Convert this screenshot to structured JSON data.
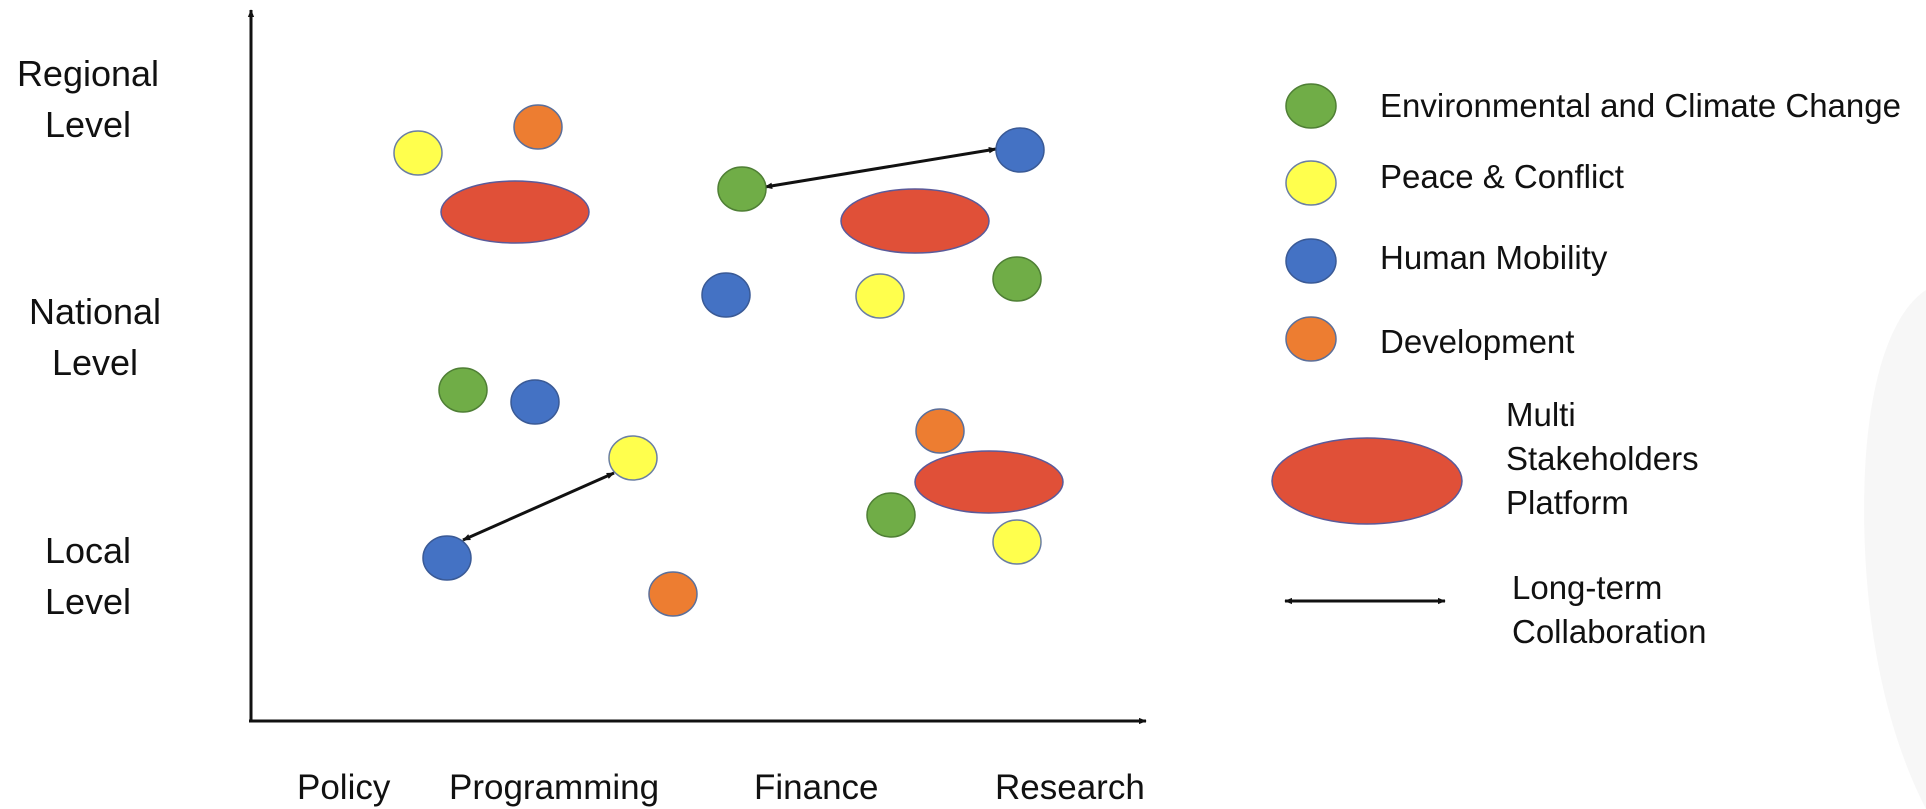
{
  "y_axis": {
    "levels": [
      {
        "lines": [
          "Regional",
          "Level"
        ]
      },
      {
        "lines": [
          "National",
          "Level"
        ]
      },
      {
        "lines": [
          "Local",
          "Level"
        ]
      }
    ]
  },
  "x_axis": {
    "categories": [
      "Policy",
      "Programming",
      "Finance",
      "Research"
    ]
  },
  "legend": {
    "environment": {
      "label": "Environmental and Climate Change",
      "color": "#70ad47"
    },
    "peace": {
      "label": "Peace & Conflict",
      "color": "#ffff4d"
    },
    "mobility": {
      "label": "Human Mobility",
      "color": "#4472c4"
    },
    "development": {
      "label": "Development",
      "color": "#ed7d31"
    },
    "platform": {
      "lines": [
        "Multi",
        "Stakeholders",
        "Platform"
      ],
      "color": "#e05038"
    },
    "collaboration": {
      "lines": [
        "Long-term",
        "Collaboration"
      ]
    }
  }
}
